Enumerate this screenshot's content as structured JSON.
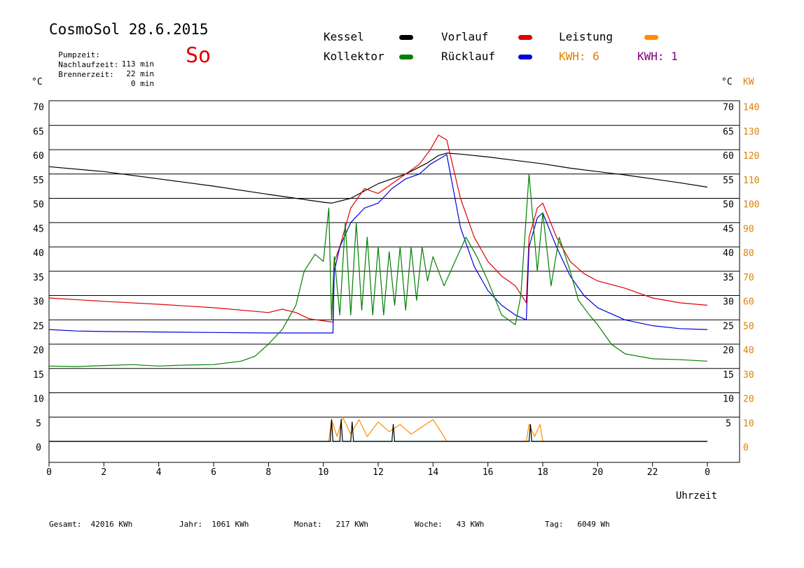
{
  "header": {
    "title": "CosmoSol 28.6.2015",
    "day_abbrev": "So",
    "stats": [
      {
        "label": "Pumpzeit:",
        "value": "113 min"
      },
      {
        "label": "Nachlaufzeit:",
        "value": "22 min"
      },
      {
        "label": "Brennerzeit:",
        "value": "0 min"
      }
    ]
  },
  "legend": {
    "items": [
      {
        "label": "Kessel",
        "color": "#000000"
      },
      {
        "label": "Vorlauf",
        "color": "#e00000"
      },
      {
        "label": "Leistung",
        "color": "#ff8c00"
      },
      {
        "label": "Kollektor",
        "color": "#008000"
      },
      {
        "label": "Rücklauf",
        "color": "#0000dd"
      }
    ],
    "kwh_orange": "KWH: 6",
    "kwh_purple": "KWH: 1",
    "kwh_orange_color": "#e08000",
    "kwh_purple_color": "#800080"
  },
  "axes": {
    "left_unit": "°C",
    "right_unit_c": "°C",
    "right_unit_kw": "KW",
    "xlabel": "Uhrzeit"
  },
  "footer": {
    "items": [
      {
        "label": "Gesamt:",
        "value": "42016 KWh"
      },
      {
        "label": "Jahr:",
        "value": "1061 KWh"
      },
      {
        "label": "Monat:",
        "value": "217 KWh"
      },
      {
        "label": "Woche:",
        "value": "43 KWh"
      },
      {
        "label": "Tag:",
        "value": "6049 Wh"
      }
    ]
  },
  "chart_data": {
    "type": "line",
    "xlabel": "Uhrzeit",
    "ylabel": "°C",
    "xlim": [
      0,
      24
    ],
    "ylim": [
      -5,
      70
    ],
    "grid": true,
    "x_ticks": [
      "0",
      "2",
      "4",
      "6",
      "8",
      "10",
      "12",
      "14",
      "16",
      "18",
      "20",
      "22",
      "0"
    ],
    "y_ticks_left": [
      0,
      5,
      10,
      15,
      20,
      25,
      30,
      35,
      40,
      45,
      50,
      55,
      60,
      65,
      70
    ],
    "y_ticks_right_c": [
      5,
      10,
      15,
      20,
      25,
      30,
      35,
      40,
      45,
      50,
      55,
      60,
      65,
      70
    ],
    "y_ticks_right_kw": [
      0,
      10,
      20,
      30,
      40,
      50,
      60,
      70,
      80,
      90,
      100,
      110,
      120,
      130,
      140
    ],
    "series": [
      {
        "name": "Kessel",
        "color": "#000000",
        "x": [
          0,
          2,
          4,
          6,
          8,
          9,
          10,
          10.3,
          11,
          12,
          13,
          13.8,
          14.2,
          14.5,
          15,
          16,
          17,
          18,
          19,
          20,
          21,
          22,
          23,
          24
        ],
        "y": [
          56.5,
          55.5,
          54,
          52.5,
          50.8,
          50,
          49.2,
          49,
          50,
          53,
          55,
          57.3,
          58.8,
          59.3,
          59.1,
          58.5,
          57.8,
          57.1,
          56.2,
          55.5,
          54.8,
          54,
          53.2,
          52.3
        ]
      },
      {
        "name": "Vorlauf",
        "color": "#e00000",
        "x": [
          0,
          2,
          4,
          6,
          8,
          8.5,
          9,
          9.5,
          10,
          10.35,
          10.4,
          10.6,
          11,
          11.5,
          12,
          12.5,
          13,
          13.5,
          13.9,
          14.2,
          14.5,
          15,
          15.5,
          16,
          16.5,
          17,
          17.4,
          17.5,
          17.8,
          18,
          18.5,
          19,
          19.5,
          20,
          21,
          22,
          23,
          24
        ],
        "y": [
          29.5,
          28.8,
          28.2,
          27.5,
          26.5,
          27.2,
          26.5,
          25.2,
          24.8,
          24.5,
          37,
          40,
          48,
          52,
          51,
          53,
          55,
          57,
          60,
          63,
          62,
          50,
          42,
          37,
          34,
          32,
          28.5,
          42,
          48,
          49,
          42,
          37,
          34.5,
          33,
          31.5,
          29.5,
          28.5,
          28
        ]
      },
      {
        "name": "Rücklauf",
        "color": "#0000dd",
        "x": [
          0,
          1,
          2,
          4,
          6,
          8,
          9,
          10,
          10.35,
          10.4,
          10.6,
          11,
          11.5,
          12,
          12.5,
          13,
          13.5,
          13.9,
          14.2,
          14.5,
          15,
          15.5,
          16,
          16.5,
          17,
          17.4,
          17.5,
          17.8,
          18,
          18.5,
          19,
          19.5,
          20,
          21,
          22,
          23,
          24
        ],
        "y": [
          23,
          22.7,
          22.6,
          22.5,
          22.4,
          22.3,
          22.3,
          22.3,
          22.3,
          35,
          40,
          45,
          48,
          49,
          52,
          54,
          55,
          57,
          58,
          59,
          44,
          36,
          31,
          28,
          26,
          25,
          40,
          46,
          47,
          40,
          34,
          30,
          27.5,
          25,
          23.8,
          23.2,
          23
        ]
      },
      {
        "name": "Kollektor",
        "color": "#008000",
        "x": [
          0,
          1,
          2,
          3,
          4,
          5,
          6,
          7,
          7.5,
          8,
          8.5,
          9,
          9.3,
          9.7,
          10,
          10.2,
          10.3,
          10.4,
          10.6,
          10.8,
          11,
          11.2,
          11.4,
          11.6,
          11.8,
          12,
          12.2,
          12.4,
          12.6,
          12.8,
          13,
          13.2,
          13.4,
          13.6,
          13.8,
          14,
          14.4,
          14.8,
          15.2,
          15.6,
          16,
          16.5,
          17,
          17.2,
          17.5,
          17.8,
          18,
          18.3,
          18.6,
          19,
          19.3,
          19.7,
          20,
          20.5,
          21,
          22,
          23,
          24
        ],
        "y": [
          15.5,
          15.4,
          15.6,
          15.8,
          15.5,
          15.7,
          15.8,
          16.5,
          17.5,
          20,
          23,
          28,
          35,
          38.5,
          37,
          48,
          25,
          38,
          26,
          45,
          26,
          45,
          27,
          42,
          26,
          40,
          26,
          39,
          28,
          40,
          27,
          40,
          29,
          40,
          33,
          38,
          32,
          37,
          42,
          38,
          33,
          26,
          24,
          30,
          55,
          35,
          47,
          32,
          42,
          35,
          29,
          26,
          24,
          20,
          18,
          17,
          16.8,
          16.5
        ]
      },
      {
        "name": "Leistung",
        "color": "#ff8c00",
        "axis": "right_kw",
        "x": [
          0,
          10.2,
          10.3,
          10.5,
          10.7,
          11,
          11.3,
          11.6,
          12,
          12.4,
          12.8,
          13.2,
          13.6,
          14,
          14.4,
          14.5,
          17.4,
          17.5,
          17.7,
          17.9,
          18,
          24
        ],
        "y": [
          0,
          0,
          9,
          2,
          10,
          3,
          9,
          2,
          8,
          4,
          7,
          3,
          6,
          9,
          2,
          0,
          0,
          7,
          2,
          7,
          0,
          0
        ]
      },
      {
        "name": "Brenner",
        "color": "#000000",
        "axis": "right_kw",
        "x": [
          0,
          10.25,
          10.3,
          10.35,
          10.6,
          10.65,
          10.7,
          11,
          11.05,
          11.1,
          12.5,
          12.55,
          12.6,
          17.5,
          17.55,
          17.6,
          24
        ],
        "y": [
          0,
          0,
          9,
          0,
          0,
          9,
          0,
          0,
          8,
          0,
          0,
          7,
          0,
          0,
          7,
          0,
          0
        ]
      }
    ]
  }
}
